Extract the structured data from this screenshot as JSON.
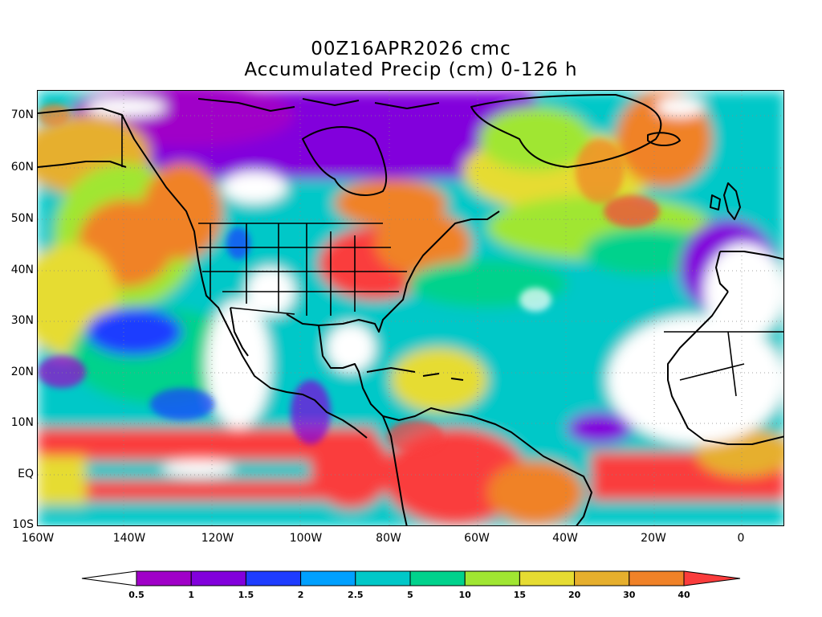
{
  "title": {
    "line1": "00Z16APR2026 cmc",
    "line2": "Accumulated Precip (cm) 0-126 h"
  },
  "axes": {
    "lat_labels": [
      "70N",
      "60N",
      "50N",
      "40N",
      "30N",
      "20N",
      "10N",
      "EQ",
      "10S"
    ],
    "lon_labels": [
      "160W",
      "140W",
      "120W",
      "100W",
      "80W",
      "60W",
      "40W",
      "20W",
      "0"
    ]
  },
  "legend": {
    "labels": [
      "0.5",
      "1",
      "1.5",
      "2",
      "2.5",
      "5",
      "10",
      "15",
      "20",
      "30",
      "40"
    ],
    "colors": [
      "#ffffff",
      "#a000c8",
      "#8200dc",
      "#1e3cff",
      "#00a0ff",
      "#00c8c8",
      "#00d28c",
      "#a0e632",
      "#e6dc32",
      "#e6af2d",
      "#f08228",
      "#fa3c3c"
    ]
  },
  "map": {
    "region": "North America and Atlantic, 160W-10E, 10S-75N",
    "grid": "dotted"
  }
}
